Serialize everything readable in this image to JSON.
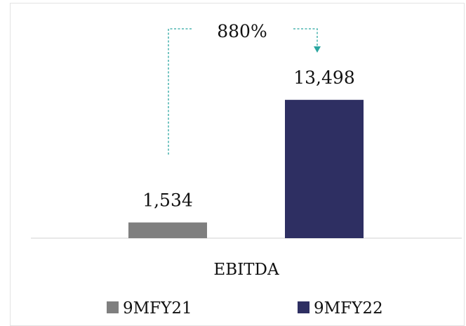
{
  "chart_data": {
    "type": "bar",
    "categories": [
      "EBITDA"
    ],
    "series": [
      {
        "name": "9MFY21",
        "values": [
          1534
        ],
        "label": "1,534",
        "color": "#7f7f7f"
      },
      {
        "name": "9MFY22",
        "values": [
          13498
        ],
        "label": "13,498",
        "color": "#2e2f62"
      }
    ],
    "ylim": [
      0,
      15700
    ],
    "grid": false,
    "legend": "bottom",
    "annotation": {
      "text": "880%",
      "from": "9MFY21",
      "to": "9MFY22",
      "color": "#2aa6a0"
    }
  }
}
